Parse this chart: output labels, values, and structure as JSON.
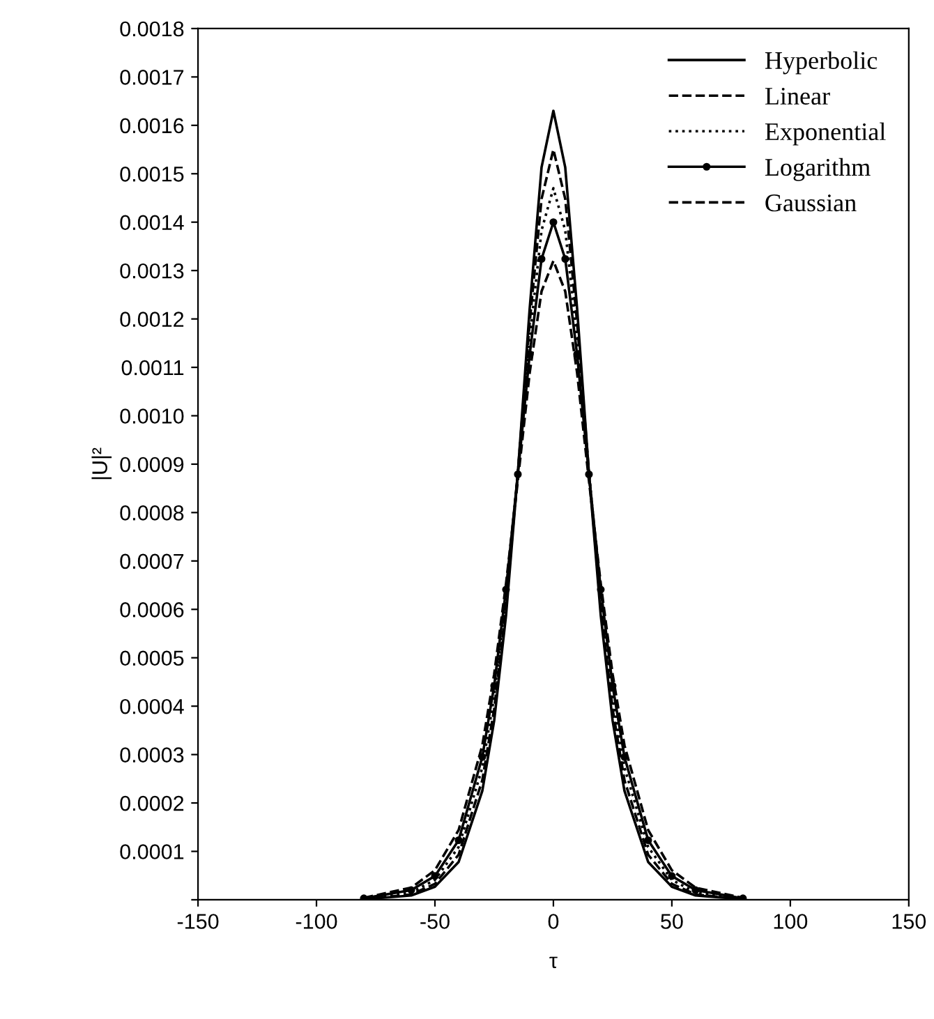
{
  "chart_data": {
    "type": "line",
    "xlabel": "τ",
    "ylabel": "|U|²",
    "x": [
      -80,
      -60,
      -50,
      -40,
      -30,
      -25,
      -20,
      -15,
      -10,
      -5,
      0,
      5,
      10,
      15,
      20,
      25,
      30,
      40,
      50,
      60,
      80
    ],
    "series": [
      {
        "name": "Hyperbolic",
        "color": "#000000",
        "line_style": "solid",
        "values": [
          1e-06,
          9e-06,
          2.7e-05,
          7.8e-05,
          0.000225,
          0.00037,
          0.000587,
          0.000882,
          0.001222,
          0.001513,
          0.00163,
          0.001513,
          0.001222,
          0.000882,
          0.000587,
          0.00037,
          0.000225,
          7.8e-05,
          2.7e-05,
          9e-06,
          1e-06
        ]
      },
      {
        "name": "Linear",
        "color": "#000000",
        "line_style": "dashed",
        "values": [
          1e-06,
          1.1e-05,
          3.3e-05,
          9.3e-05,
          0.000247,
          0.000394,
          0.000605,
          0.000884,
          0.001193,
          0.001448,
          0.00155,
          0.001448,
          0.001193,
          0.000884,
          0.000605,
          0.000394,
          0.000247,
          9.3e-05,
          3.3e-05,
          1.1e-05,
          1e-06
        ]
      },
      {
        "name": "Exponential",
        "color": "#000000",
        "line_style": "dotted",
        "values": [
          2e-06,
          1.5e-05,
          4.1e-05,
          0.000109,
          0.000273,
          0.00042,
          0.000628,
          0.000883,
          0.00116,
          0.001383,
          0.00147,
          0.001383,
          0.00116,
          0.000883,
          0.000628,
          0.00042,
          0.000273,
          0.000109,
          4.1e-05,
          1.5e-05,
          2e-06
        ]
      },
      {
        "name": "Logarithm",
        "color": "#000000",
        "line_style": "solid",
        "marker": "circle",
        "values": [
          3e-06,
          2e-05,
          4.9e-05,
          0.000123,
          0.000295,
          0.000442,
          0.000641,
          0.000879,
          0.001127,
          0.001324,
          0.0014,
          0.001324,
          0.001127,
          0.000879,
          0.000641,
          0.000442,
          0.000295,
          0.000123,
          4.9e-05,
          2e-05,
          3e-06
        ]
      },
      {
        "name": "Gaussian",
        "color": "#000000",
        "line_style": "dashed",
        "values": [
          4e-06,
          2.5e-05,
          6.1e-05,
          0.000144,
          0.000319,
          0.000466,
          0.000653,
          0.000866,
          0.001089,
          0.001257,
          0.00132,
          0.001257,
          0.001089,
          0.000866,
          0.000653,
          0.000466,
          0.000319,
          0.000144,
          6.1e-05,
          2.5e-05,
          4e-06
        ]
      }
    ],
    "xlim": [
      -150,
      150
    ],
    "xticks": [
      -150,
      -100,
      -50,
      0,
      50,
      100,
      150
    ],
    "ylim": [
      0,
      0.0018
    ],
    "yticks": [
      {
        "value": 0,
        "label": null
      },
      0.0001,
      0.0002,
      0.0003,
      0.0004,
      0.0005,
      0.0006,
      0.0007,
      0.0008,
      0.0009,
      {
        "value": 0.001,
        "label": "0.0010"
      },
      0.0011,
      0.0012,
      0.0013,
      0.0014,
      0.0015,
      0.0016,
      0.0017,
      0.0018
    ],
    "legend": "top right",
    "grid": false
  }
}
